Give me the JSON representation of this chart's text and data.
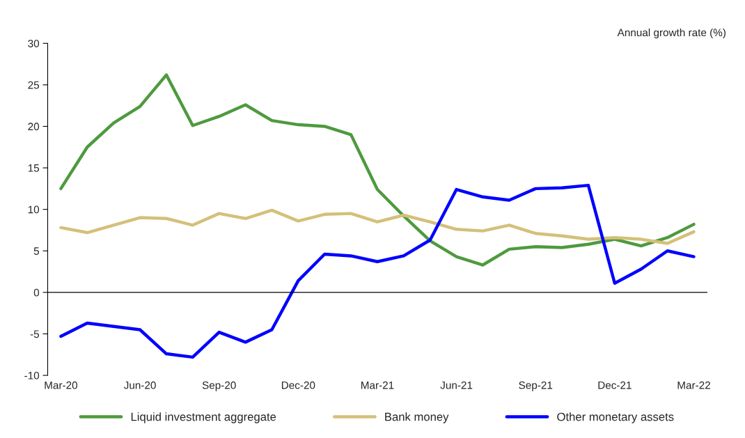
{
  "chart_data": {
    "type": "line",
    "ylabel": "Annual growth rate (%)",
    "categories": [
      "Mar-20",
      null,
      null,
      "Jun-20",
      null,
      null,
      "Sep-20",
      null,
      null,
      "Dec-20",
      null,
      null,
      "Mar-21",
      null,
      null,
      "Jun-21",
      null,
      null,
      "Sep-21",
      null,
      null,
      "Dec-21",
      null,
      null,
      "Mar-22"
    ],
    "series": [
      {
        "name": "Liquid investment aggregate",
        "color": "#4e9a3e",
        "values": [
          12.5,
          17.5,
          20.4,
          22.4,
          26.2,
          20.1,
          21.2,
          22.6,
          20.7,
          20.2,
          20.0,
          19.0,
          12.4,
          9.2,
          6.2,
          4.3,
          3.3,
          5.2,
          5.5,
          5.4,
          5.8,
          6.4,
          5.6,
          6.6,
          8.2
        ]
      },
      {
        "name": "Bank money",
        "color": "#d4c07a",
        "values": [
          7.8,
          7.2,
          8.1,
          9.0,
          8.9,
          8.1,
          9.5,
          8.9,
          9.9,
          8.6,
          9.4,
          9.5,
          8.5,
          9.3,
          8.5,
          7.6,
          7.4,
          8.1,
          7.1,
          6.8,
          6.4,
          6.6,
          6.4,
          5.9,
          7.3
        ]
      },
      {
        "name": "Other monetary assets",
        "color": "#0000ff",
        "values": [
          -5.3,
          -3.7,
          -4.1,
          -4.5,
          -7.4,
          -7.8,
          -4.8,
          -6.0,
          -4.5,
          1.4,
          4.6,
          4.4,
          3.7,
          4.4,
          6.3,
          12.4,
          11.5,
          11.1,
          12.5,
          12.6,
          12.9,
          1.1,
          2.8,
          5.0,
          4.3
        ]
      }
    ],
    "ylim": [
      -10,
      30
    ],
    "yticks": [
      -10,
      -5,
      0,
      5,
      10,
      15,
      20,
      25,
      30
    ],
    "legend": "bottom",
    "marker": "none",
    "line_style": "solid"
  }
}
